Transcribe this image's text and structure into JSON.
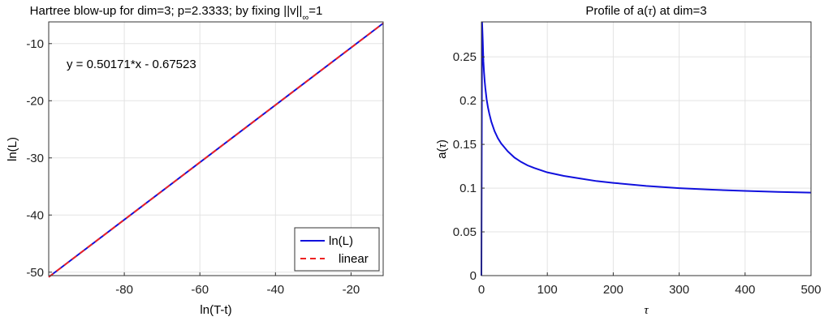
{
  "chart_data": [
    {
      "type": "line",
      "title_main": "Hartree blow-up for dim=3; p=2.3333; by fixing ||v||",
      "title_sub": "∞",
      "title_tail": "=1",
      "xlabel": "ln(T-t)",
      "ylabel": "ln(L)",
      "xlim": [
        -100,
        -11.5
      ],
      "ylim": [
        -50.6,
        -6.2
      ],
      "xticks": [
        -80,
        -60,
        -40,
        -20
      ],
      "yticks": [
        -50,
        -40,
        -30,
        -20,
        -10
      ],
      "grid": true,
      "annotation": "y = 0.50171*x - 0.67523",
      "legend": {
        "position": "bottom-right"
      },
      "series": [
        {
          "name": "ln(L)",
          "style": "solid",
          "color": "#1010dd",
          "x": [
            -100,
            -11.5
          ],
          "y": [
            -50.85,
            -6.45
          ]
        },
        {
          "name": "linear",
          "style": "dashed",
          "color": "#ee2222",
          "x": [
            -100,
            -11.5
          ],
          "y": [
            -50.85,
            -6.45
          ]
        }
      ]
    },
    {
      "type": "line",
      "title_main": "Profile of a(",
      "title_sym": "τ",
      "title_tail": ") at dim=3",
      "xlabel": "τ",
      "ylabel_main": "a(",
      "ylabel_sym": "τ",
      "ylabel_tail": ")",
      "xlim": [
        0,
        500
      ],
      "ylim": [
        0,
        0.29
      ],
      "xticks": [
        0,
        100,
        200,
        300,
        400,
        500
      ],
      "yticks": [
        0,
        0.05,
        0.1,
        0.15,
        0.2,
        0.25
      ],
      "ytick_labels": [
        "0",
        "0.05",
        "0.1",
        "0.15",
        "0.2",
        "0.25"
      ],
      "grid": true,
      "series": [
        {
          "color": "#1010dd",
          "x": [
            0,
            1,
            2,
            3,
            4,
            5,
            6,
            8,
            10,
            12,
            15,
            20,
            25,
            30,
            40,
            50,
            60,
            70,
            80,
            100,
            125,
            150,
            175,
            200,
            250,
            300,
            350,
            400,
            450,
            500
          ],
          "y": [
            0,
            0.29,
            0.27,
            0.245,
            0.232,
            0.222,
            0.214,
            0.201,
            0.192,
            0.185,
            0.176,
            0.165,
            0.157,
            0.151,
            0.142,
            0.135,
            0.13,
            0.126,
            0.123,
            0.118,
            0.114,
            0.111,
            0.108,
            0.106,
            0.1025,
            0.1,
            0.0982,
            0.0968,
            0.0957,
            0.0948
          ]
        }
      ]
    }
  ]
}
